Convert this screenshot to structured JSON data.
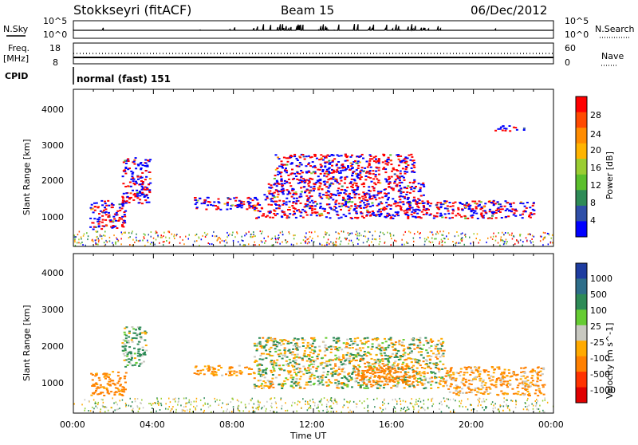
{
  "header": {
    "station": "Stokkseyri (fitACF)",
    "beam": "Beam 15",
    "date": "06/Dec/2012"
  },
  "status_panels": {
    "nsky_label": "N.Sky",
    "nsky_ticks": [
      "10^5",
      "10^0"
    ],
    "nsearch_label": "N.Search",
    "nsearch_ticks": [
      "10^5",
      "10^0"
    ],
    "freq_label": "Freq.",
    "freq_unit": "[MHz]",
    "freq_ticks": [
      "18",
      "8"
    ],
    "nave_label": "Nave",
    "nave_ticks": [
      "60",
      "0"
    ],
    "cpid_label": "CPID",
    "cpid_text": "normal (fast) 151"
  },
  "time_axis": {
    "ticks": [
      "00:00",
      "04:00",
      "08:00",
      "12:00",
      "16:00",
      "20:00",
      "00:00"
    ],
    "label": "Time UT"
  },
  "range_axis": {
    "ticks": [
      "1000",
      "2000",
      "3000",
      "4000"
    ],
    "label": "Slant Range [km]"
  },
  "power_scale": {
    "label": "Power [dB]",
    "ticks": [
      "28",
      "24",
      "20",
      "16",
      "12",
      "8",
      "4"
    ],
    "colors": [
      "#ff0000",
      "#ff4a00",
      "#ff8c00",
      "#ffb400",
      "#9acd32",
      "#5bbf2c",
      "#2e8b57",
      "#2f4fa8",
      "#0000ff"
    ]
  },
  "velocity_scale": {
    "label": "Velocity [m s^-1]",
    "ticks": [
      "1000",
      "500",
      "100",
      "25",
      "-25",
      "-100",
      "-500",
      "-1000"
    ],
    "colors": [
      "#1e3ca0",
      "#2e6e8a",
      "#2e8b57",
      "#66cc33",
      "#c8c8c0",
      "#ffaa00",
      "#ff8000",
      "#ff3300",
      "#e00000"
    ]
  },
  "chart_data": {
    "type": "heatmap",
    "xlabel": "Time UT",
    "ylabel": "Slant Range [km]",
    "xlim_hours": [
      0,
      24
    ],
    "ylim_km": [
      200,
      4600
    ],
    "panels": [
      "Power [dB]",
      "Velocity [m s^-1]"
    ],
    "power_regions": [
      {
        "t0": 0.8,
        "t1": 2.6,
        "r0": 700,
        "r1": 1500,
        "value_db": 6
      },
      {
        "t0": 2.4,
        "t1": 3.8,
        "r0": 1400,
        "r1": 2700,
        "value_db": 7
      },
      {
        "t0": 6.0,
        "t1": 9.2,
        "r0": 1250,
        "r1": 1600,
        "value_db": 14
      },
      {
        "t0": 9.0,
        "t1": 18.5,
        "r0": 1000,
        "r1": 1500,
        "value_db": 20
      },
      {
        "t0": 9.5,
        "t1": 17.5,
        "r0": 1500,
        "r1": 2000,
        "value_db": 16
      },
      {
        "t0": 10.0,
        "t1": 17.0,
        "r0": 2000,
        "r1": 2800,
        "value_db": 12
      },
      {
        "t0": 18.5,
        "t1": 23.0,
        "r0": 1000,
        "r1": 1500,
        "value_db": 8
      },
      {
        "t0": 21.0,
        "t1": 22.5,
        "r0": 3450,
        "r1": 3600,
        "value_db": 6
      }
    ],
    "velocity_regions": [
      {
        "t0": 0.8,
        "t1": 2.6,
        "r0": 700,
        "r1": 1400,
        "value_ms": -200
      },
      {
        "t0": 2.4,
        "t1": 3.6,
        "r0": 1500,
        "r1": 2600,
        "value_ms": 100
      },
      {
        "t0": 6.0,
        "t1": 9.0,
        "r0": 1250,
        "r1": 1550,
        "value_ms": -150
      },
      {
        "t0": 9.0,
        "t1": 18.5,
        "r0": 900,
        "r1": 2300,
        "value_ms": 0
      },
      {
        "t0": 14.0,
        "t1": 17.0,
        "r0": 1000,
        "r1": 1500,
        "value_ms": -300
      },
      {
        "t0": 18.5,
        "t1": 23.5,
        "r0": 700,
        "r1": 1500,
        "value_ms": -120
      }
    ]
  }
}
